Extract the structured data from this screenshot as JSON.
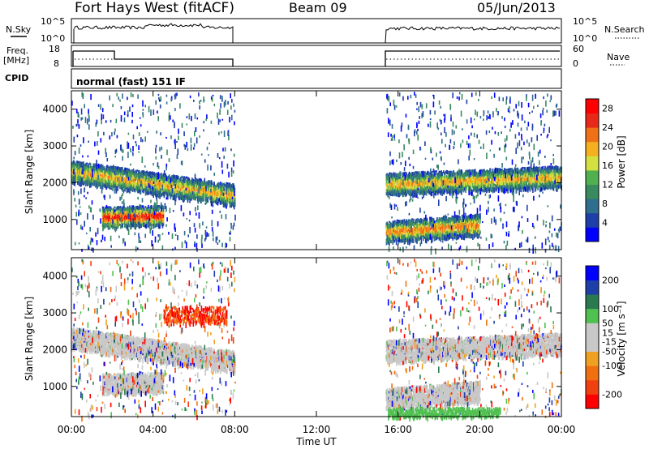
{
  "header": {
    "station": "Fort Hays West (fitACF)",
    "beam": "Beam 09",
    "date": "05/Jun/2013"
  },
  "panels": {
    "nsky": {
      "left_label": "N.Sky",
      "left_ticks": [
        "10^5",
        "10^0"
      ],
      "right_ticks": [
        "10^5",
        "10^0"
      ],
      "right_label": "N.Search"
    },
    "freq": {
      "left_label_1": "Freq.",
      "left_label_2": "[MHz]",
      "left_ticks": [
        "18",
        "8"
      ],
      "right_ticks": [
        "60",
        "0"
      ],
      "right_label": "Nave"
    },
    "cpid": {
      "label": "CPID",
      "mode": "normal (fast) 151 IF"
    }
  },
  "chart_data": [
    {
      "type": "heatmap",
      "name": "power",
      "ylabel": "Slant Range [km]",
      "yticks": [
        "4000",
        "3000",
        "2000",
        "1000"
      ],
      "ylim": [
        180,
        4500
      ],
      "xlim": [
        "00:00",
        "24:00"
      ],
      "colorbar": {
        "label": "Power [dB]",
        "ticks": [
          "28",
          "24",
          "20",
          "16",
          "12",
          "8",
          "4"
        ],
        "range": [
          0,
          30
        ],
        "colors": [
          "#0000ff",
          "#1e3fa8",
          "#2f6e8c",
          "#3a8a60",
          "#50b050",
          "#d4e040",
          "#f5b020",
          "#f07018",
          "#e82818",
          "#ff0000"
        ]
      },
      "gaps": [
        [
          "08:00",
          "15:25"
        ]
      ],
      "bands": [
        {
          "t0": 0.0,
          "t1": 8.0,
          "r0": 2350,
          "r1": 1700,
          "level": 20
        },
        {
          "t0": 1.5,
          "t1": 4.5,
          "r0": 1100,
          "r1": 1150,
          "level": 28
        },
        {
          "t0": 15.4,
          "t1": 24.0,
          "r0": 2000,
          "r1": 2200,
          "level": 20
        },
        {
          "t0": 15.4,
          "t1": 20.0,
          "r0": 700,
          "r1": 900,
          "level": 22
        }
      ]
    },
    {
      "type": "heatmap",
      "name": "velocity",
      "ylabel": "Slant Range [km]",
      "yticks": [
        "4000",
        "3000",
        "2000",
        "1000"
      ],
      "ylim": [
        180,
        4500
      ],
      "xlabel": "Time UT",
      "xticks": [
        "00:00",
        "04:00",
        "08:00",
        "12:00",
        "16:00",
        "20:00",
        "00:00"
      ],
      "colorbar": {
        "label": "Velocity [m s⁻¹]",
        "ticks": [
          "200",
          "100",
          "50",
          "15",
          "-15",
          "-50",
          "-100",
          "-200"
        ],
        "range": [
          -250,
          250
        ],
        "colors": [
          "#ff0000",
          "#f04010",
          "#f07010",
          "#f0a020",
          "#c8c8c8",
          "#c8c8c8",
          "#50c050",
          "#2a7a50",
          "#1e3fa8",
          "#0000ff"
        ]
      }
    }
  ]
}
